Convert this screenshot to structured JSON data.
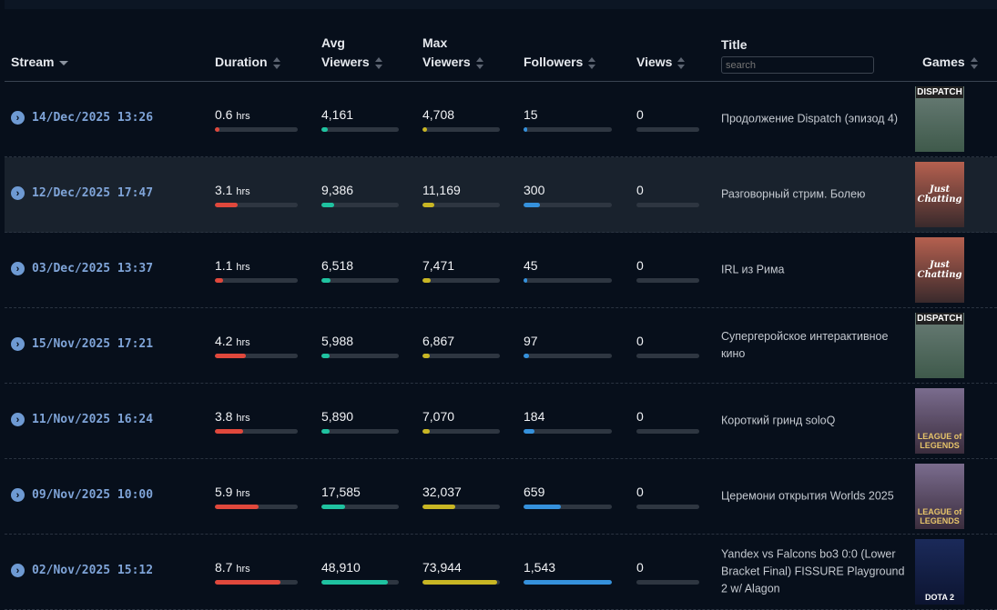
{
  "columns": {
    "stream": "Stream",
    "duration": "Duration",
    "avg": [
      "Avg",
      "Viewers"
    ],
    "max": [
      "Max",
      "Viewers"
    ],
    "followers": "Followers",
    "views": "Views",
    "title": "Title",
    "title_search_placeholder": "search",
    "games": "Games"
  },
  "units": {
    "hrs": "hrs"
  },
  "colors": {
    "duration": "#e0483c",
    "avg": "#1fc2a0",
    "max": "#c8b624",
    "followers": "#3591dc",
    "views": "#2e3641"
  },
  "rows": [
    {
      "date": "14/Dec/2025 13:26",
      "duration": "0.6",
      "duration_frac": 0.05,
      "avg": "4,161",
      "avg_frac": 0.08,
      "max": "4,708",
      "max_frac": 0.06,
      "followers": "15",
      "followers_frac": 0.01,
      "views": "0",
      "views_frac": 0,
      "title": "Продолжение Dispatch (эпизод 4)",
      "game": "DISPATCH",
      "game_class": "g-dispatch"
    },
    {
      "date": "12/Dec/2025 17:47",
      "duration": "3.1",
      "duration_frac": 0.27,
      "avg": "9,386",
      "avg_frac": 0.17,
      "max": "11,169",
      "max_frac": 0.15,
      "followers": "300",
      "followers_frac": 0.19,
      "views": "0",
      "views_frac": 0,
      "title": "Разговорный стрим. Болею",
      "game": "Just Chatting",
      "game_class": "g-chat"
    },
    {
      "date": "03/Dec/2025 13:37",
      "duration": "1.1",
      "duration_frac": 0.1,
      "avg": "6,518",
      "avg_frac": 0.12,
      "max": "7,471",
      "max_frac": 0.1,
      "followers": "45",
      "followers_frac": 0.03,
      "views": "0",
      "views_frac": 0,
      "title": "IRL из Рима",
      "game": "Just Chatting",
      "game_class": "g-chat"
    },
    {
      "date": "15/Nov/2025 17:21",
      "duration": "4.2",
      "duration_frac": 0.37,
      "avg": "5,988",
      "avg_frac": 0.11,
      "max": "6,867",
      "max_frac": 0.09,
      "followers": "97",
      "followers_frac": 0.06,
      "views": "0",
      "views_frac": 0,
      "title": "Супергеройское интерактивное кино",
      "game": "DISPATCH",
      "game_class": "g-dispatch"
    },
    {
      "date": "11/Nov/2025 16:24",
      "duration": "3.8",
      "duration_frac": 0.34,
      "avg": "5,890",
      "avg_frac": 0.11,
      "max": "7,070",
      "max_frac": 0.09,
      "followers": "184",
      "followers_frac": 0.12,
      "views": "0",
      "views_frac": 0,
      "title": "Короткий гринд soloQ",
      "game": "LEAGUE of LEGENDS",
      "game_class": "g-lol"
    },
    {
      "date": "09/Nov/2025 10:00",
      "duration": "5.9",
      "duration_frac": 0.53,
      "avg": "17,585",
      "avg_frac": 0.31,
      "max": "32,037",
      "max_frac": 0.42,
      "followers": "659",
      "followers_frac": 0.42,
      "views": "0",
      "views_frac": 0,
      "title": "Церемони открытия Worlds 2025",
      "game": "LEAGUE of LEGENDS",
      "game_class": "g-lol"
    },
    {
      "date": "02/Nov/2025 15:12",
      "duration": "8.7",
      "duration_frac": 0.79,
      "avg": "48,910",
      "avg_frac": 0.86,
      "max": "73,944",
      "max_frac": 0.96,
      "followers": "1,543",
      "followers_frac": 1.0,
      "views": "0",
      "views_frac": 0,
      "title": "Yandex vs Falcons bo3 0:0 (Lower Bracket Final) FISSURE Playground 2 w/ Alagon",
      "game": "DOTA 2",
      "game_class": "g-dota"
    }
  ]
}
